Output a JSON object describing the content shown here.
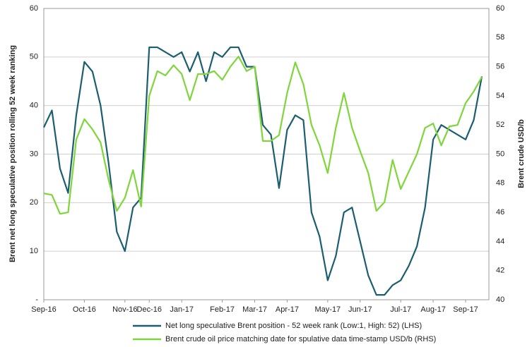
{
  "chart_data": {
    "type": "line",
    "categories": [
      "Sep-16",
      null,
      null,
      null,
      null,
      "Oct-16",
      null,
      null,
      null,
      null,
      "Nov-16",
      null,
      null,
      "Dec-16",
      null,
      null,
      null,
      "Jan-17",
      null,
      null,
      null,
      null,
      "Feb-17",
      null,
      null,
      null,
      "Mar-17",
      null,
      null,
      null,
      "Apr-17",
      null,
      null,
      null,
      null,
      "May-17",
      null,
      null,
      null,
      "Jun-17",
      null,
      null,
      null,
      null,
      "Jul-17",
      null,
      null,
      null,
      "Aug-17",
      null,
      null,
      null,
      "Sep-17",
      null,
      null
    ],
    "series": [
      {
        "name": "Net long speculative Brent position - 52 week rank (Low:1, High: 52) (LHS)",
        "color": "#1b5e70",
        "values": [
          35.5,
          39,
          27,
          22,
          38,
          49,
          47,
          40,
          28,
          14,
          10,
          19,
          21,
          52,
          52,
          51,
          50,
          51,
          47,
          51,
          45,
          51,
          50,
          52,
          52,
          48,
          48,
          36,
          34,
          23,
          35,
          38,
          37,
          18,
          13,
          4,
          9,
          18,
          19,
          12,
          5,
          1,
          1,
          3,
          4,
          7,
          11,
          19,
          33,
          36,
          35,
          34,
          33,
          37,
          46
        ]
      },
      {
        "name": "Brent crude oil price matching date for spulative data time-stamp USD/b (RHS)",
        "color": "#7ed63a",
        "axis": "y2",
        "values": [
          47.3,
          47.2,
          45.9,
          46.0,
          51.0,
          52.4,
          51.7,
          50.8,
          48.2,
          46.1,
          47.0,
          48.9,
          46.4,
          54.0,
          55.7,
          55.4,
          56.1,
          55.5,
          53.7,
          55.5,
          55.5,
          55.7,
          55.1,
          56.0,
          56.7,
          55.7,
          56.0,
          50.9,
          50.9,
          51.3,
          54.2,
          56.3,
          54.8,
          52.0,
          50.6,
          48.7,
          51.8,
          54.2,
          51.8,
          50.2,
          48.7,
          46.1,
          46.7,
          49.6,
          47.6,
          48.8,
          50.0,
          51.8,
          52.1,
          50.6,
          51.9,
          52.0,
          53.5,
          54.3,
          55.3
        ]
      }
    ],
    "ylabel": "Brent net long speculative position rolling 52 week ranking",
    "y2label": "Brent crude USD/b",
    "ylim": [
      0,
      60
    ],
    "yticks": [
      {
        "value": 0,
        "label": "-"
      },
      10,
      20,
      30,
      40,
      50,
      60
    ],
    "y2lim": [
      40,
      60
    ],
    "y2ticks": [
      40,
      42,
      44,
      46,
      48,
      50,
      52,
      54,
      56,
      58,
      60
    ],
    "grid": true,
    "legend": "bottom"
  }
}
